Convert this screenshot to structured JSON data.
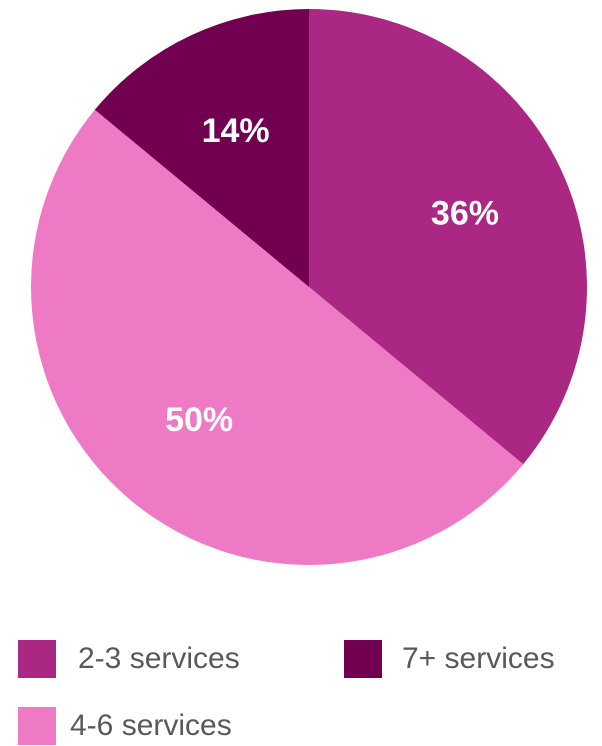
{
  "chart_data": {
    "type": "pie",
    "title": "",
    "categories": [
      "2-3 services",
      "7+ services",
      "4-6 services"
    ],
    "values": [
      36,
      14,
      50
    ],
    "value_labels": [
      "36%",
      "14%",
      "50%"
    ],
    "slice_order": [
      "2-3 services",
      "4-6 services",
      "7+ services"
    ],
    "colors": {
      "2-3 services": "#AA2783",
      "4-6 services": "#EE7AC6",
      "7+ services": "#720050"
    },
    "start_angle": "12 o'clock",
    "direction": "clockwise",
    "legend_position": "bottom"
  },
  "legend": {
    "items": [
      {
        "label": "2-3 services",
        "color": "#AA2783"
      },
      {
        "label": "7+ services",
        "color": "#720050"
      },
      {
        "label": "4-6 services",
        "color": "#EE7AC6"
      }
    ]
  }
}
